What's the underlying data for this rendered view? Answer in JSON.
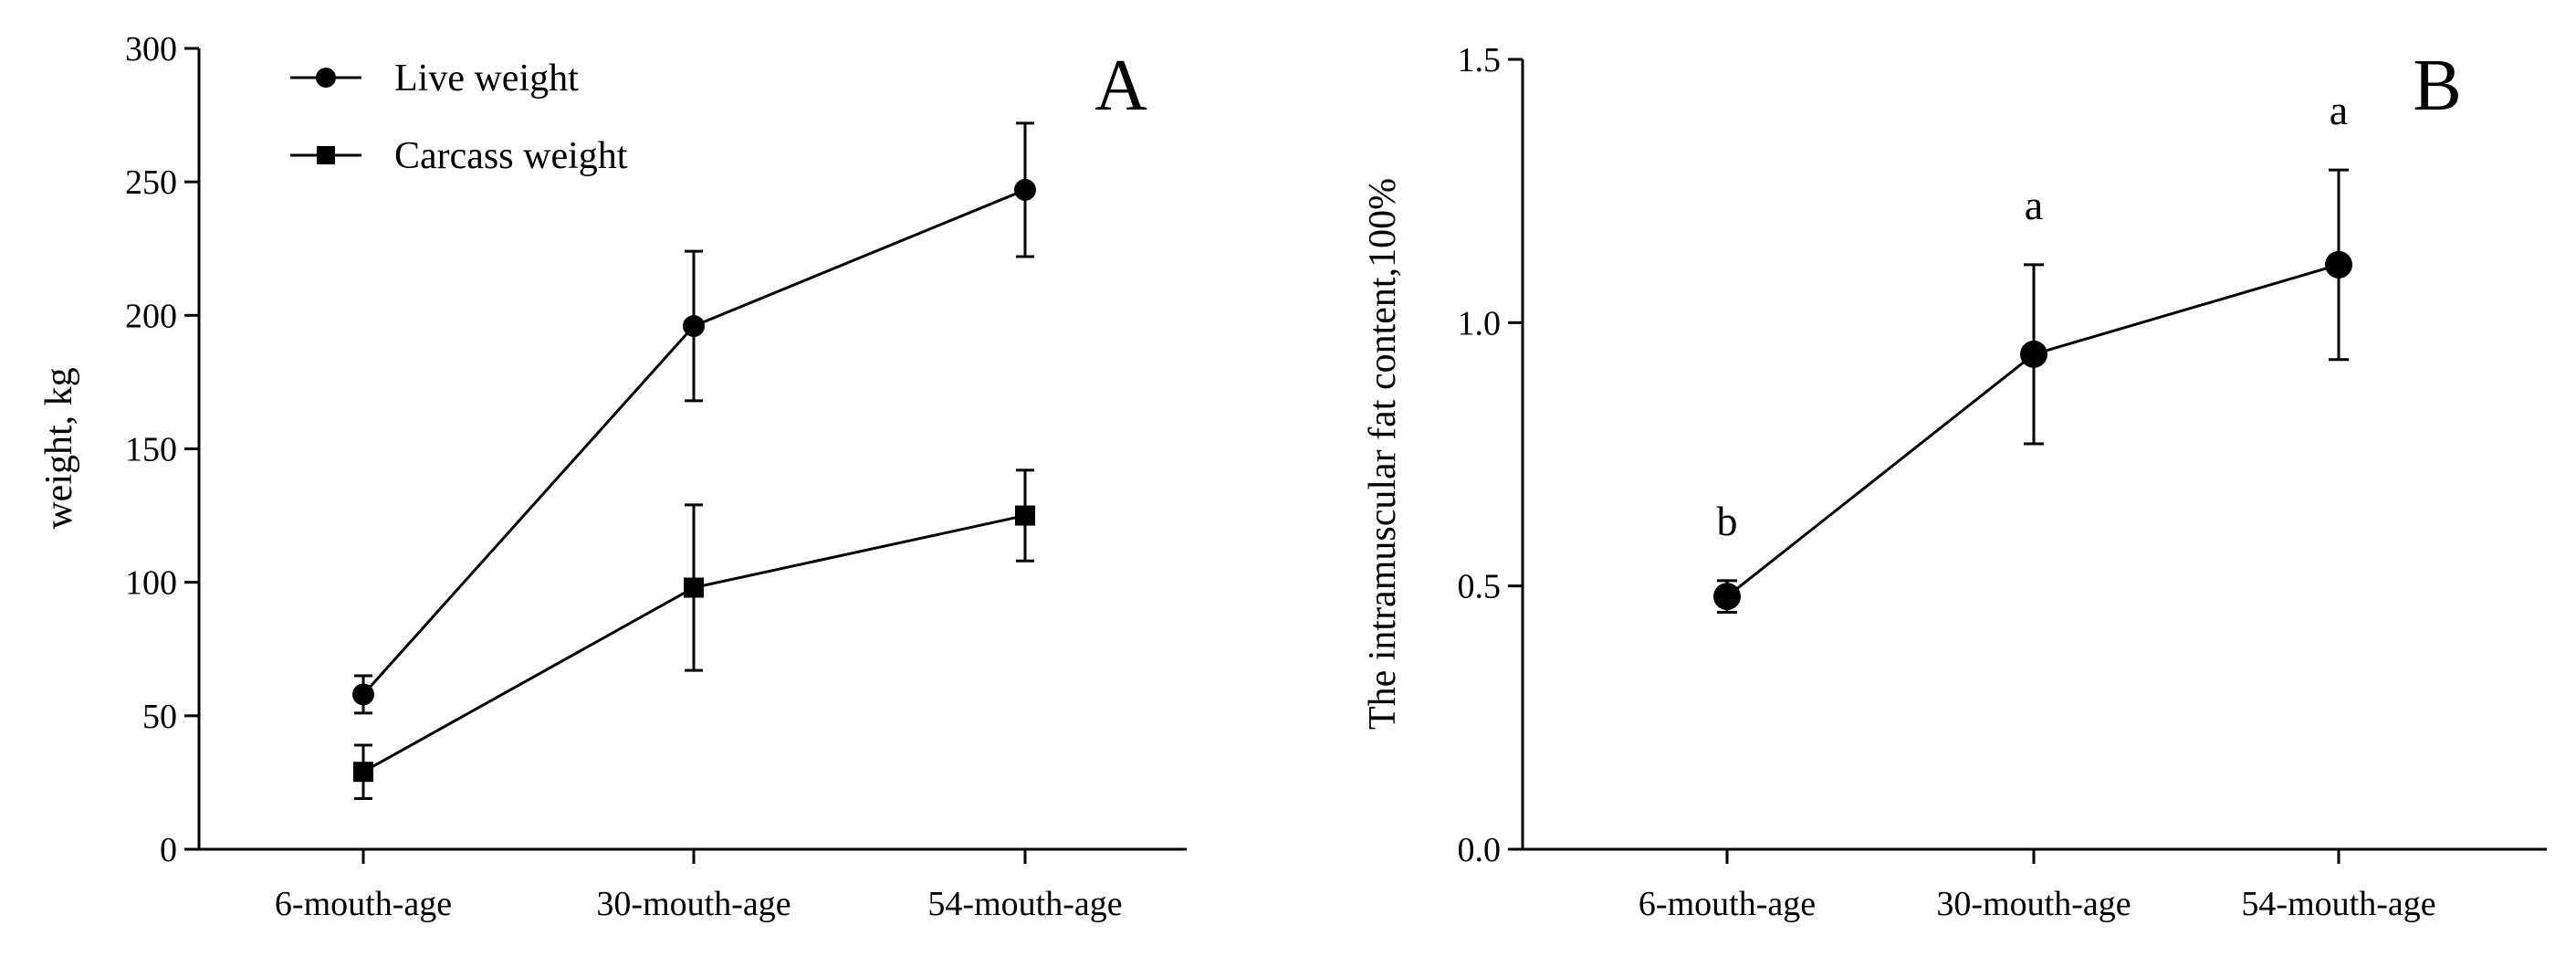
{
  "chart_data": [
    {
      "panel": "A",
      "type": "line",
      "title": "",
      "xlabel": "",
      "ylabel": "weight, kg",
      "ylim": [
        0,
        300
      ],
      "yticks": [
        0,
        50,
        100,
        150,
        200,
        250,
        300
      ],
      "categories": [
        "6-mouth-age",
        "30-mouth-age",
        "54-mouth-age"
      ],
      "series": [
        {
          "name": "Live weight",
          "marker": "circle",
          "values": [
            58,
            196,
            247
          ],
          "error": [
            7,
            28,
            25
          ]
        },
        {
          "name": "Carcass weight",
          "marker": "square",
          "values": [
            29,
            98,
            125
          ],
          "error": [
            10,
            31,
            17
          ]
        }
      ],
      "legend_position": "top-left"
    },
    {
      "panel": "B",
      "type": "line",
      "title": "",
      "xlabel": "",
      "ylabel": "The intramuscular fat content,100%",
      "ylim": [
        0,
        1.5
      ],
      "yticks": [
        "0.0",
        "0.5",
        "1.0",
        "1.5"
      ],
      "categories": [
        "6-mouth-age",
        "30-mouth-age",
        "54-mouth-age"
      ],
      "series": [
        {
          "name": "Intramuscular fat content",
          "marker": "circle",
          "values": [
            0.48,
            0.94,
            1.11
          ],
          "error": [
            0.03,
            0.17,
            0.18
          ]
        }
      ],
      "annotations": [
        "b",
        "a",
        "a"
      ]
    }
  ]
}
